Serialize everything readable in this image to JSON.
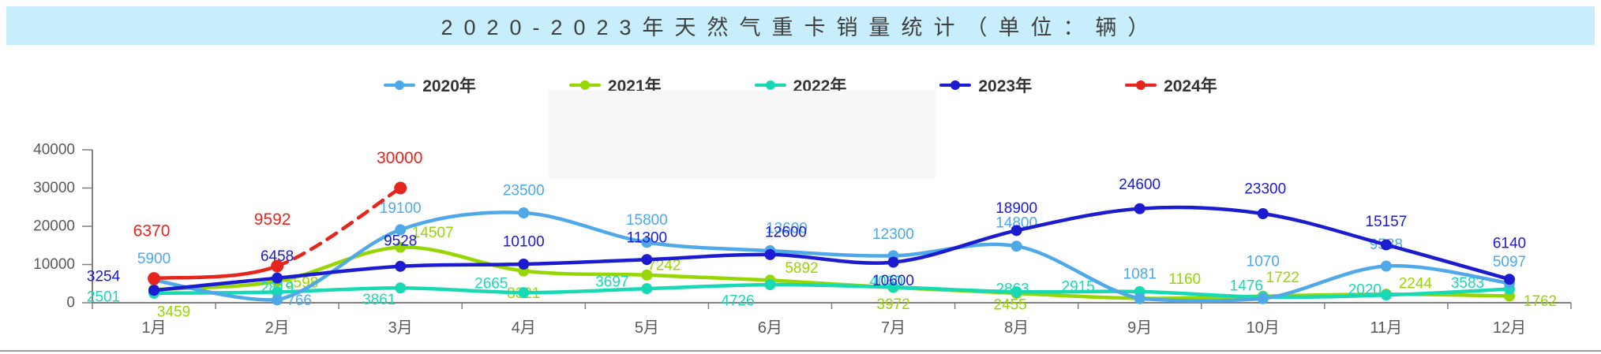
{
  "title": {
    "text": "2020-2023年天然气重卡销量统计（单位：辆）"
  },
  "colors": {
    "title_band_bg": "#C7EEFA",
    "title_text": "#3F3F3F",
    "axis_text": "#595959",
    "axis_line": "#7F7F7F",
    "watermark_box": "#F7F7F7",
    "bottom_border": "#9B9B9B",
    "legend_text": "#333333"
  },
  "chart_data": {
    "type": "line",
    "title": "2020-2023年天然气重卡销量统计（单位：辆）",
    "categories": [
      "1月",
      "2月",
      "3月",
      "4月",
      "5月",
      "6月",
      "7月",
      "8月",
      "9月",
      "10月",
      "11月",
      "12月"
    ],
    "xlabel": "",
    "ylabel": "",
    "ylim": [
      0,
      40000
    ],
    "y_ticks": [
      0,
      10000,
      20000,
      30000,
      40000
    ],
    "grid": false,
    "legend_position": "top",
    "series": [
      {
        "name": "2020年",
        "color": "#4FA8E8",
        "values": [
          5900,
          766,
          19100,
          23500,
          15800,
          13600,
          12300,
          14800,
          1081,
          1070,
          9588,
          5097
        ],
        "label_size": 19,
        "label_offsets": [
          [
            0,
            -27
          ],
          [
            28,
            1
          ],
          [
            0,
            -27
          ],
          [
            0,
            -28
          ],
          [
            0,
            -28
          ],
          [
            21,
            -28
          ],
          [
            0,
            -27
          ],
          [
            0,
            -29
          ],
          [
            0,
            -31
          ],
          [
            0,
            -47
          ],
          [
            0,
            -27
          ],
          [
            0,
            -27
          ]
        ]
      },
      {
        "name": "2021年",
        "color": "#97D700",
        "values": [
          3459,
          5598,
          14507,
          8321,
          7242,
          5892,
          3972,
          2455,
          1160,
          1722,
          2244,
          1762
        ],
        "label_size": 19,
        "label_offsets": [
          [
            25,
            29
          ],
          [
            31,
            2
          ],
          [
            41,
            -18
          ],
          [
            0,
            29
          ],
          [
            22,
            -12
          ],
          [
            40,
            -15
          ],
          [
            0,
            22
          ],
          [
            -8,
            15
          ],
          [
            57,
            -24
          ],
          [
            25,
            -23
          ],
          [
            37,
            -13
          ],
          [
            39,
            7
          ]
        ]
      },
      {
        "name": "2022年",
        "color": "#17D9B5",
        "values": [
          2501,
          2819,
          3861,
          2665,
          3697,
          4726,
          4060,
          2863,
          2915,
          1476,
          2020,
          3583
        ],
        "label_size": 19,
        "label_offsets": [
          [
            -64,
            5
          ],
          [
            0,
            -5
          ],
          [
            -27,
            15
          ],
          [
            -41,
            -11
          ],
          [
            -44,
            -8
          ],
          [
            -41,
            21
          ],
          [
            -9,
            -7
          ],
          [
            -5,
            -3
          ],
          [
            -78,
            -6
          ],
          [
            -21,
            -14
          ],
          [
            -27,
            -6
          ],
          [
            -53,
            -7
          ]
        ]
      },
      {
        "name": "2023年",
        "color": "#1B1BD0",
        "values": [
          3254,
          6458,
          9528,
          10100,
          11300,
          12600,
          10600,
          18900,
          24600,
          23300,
          15157,
          6140
        ],
        "label_size": 19,
        "label_offsets": [
          [
            -64,
            -17
          ],
          [
            0,
            -27
          ],
          [
            0,
            -32
          ],
          [
            0,
            -28
          ],
          [
            0,
            -27
          ],
          [
            20,
            -28
          ],
          [
            0,
            24
          ],
          [
            0,
            -28
          ],
          [
            0,
            -30
          ],
          [
            3,
            -31
          ],
          [
            0,
            -29
          ],
          [
            0,
            -45
          ]
        ]
      },
      {
        "name": "2024年",
        "color": "#E6261D",
        "values": [
          6370,
          9592,
          30000,
          null,
          null,
          null,
          null,
          null,
          null,
          null,
          null,
          null
        ],
        "dash_from_index": 1,
        "marker_radius": 8,
        "label_size": 21,
        "label_offsets": [
          [
            -3,
            -60
          ],
          [
            -6,
            -59
          ],
          [
            -1,
            -38
          ]
        ]
      }
    ]
  }
}
